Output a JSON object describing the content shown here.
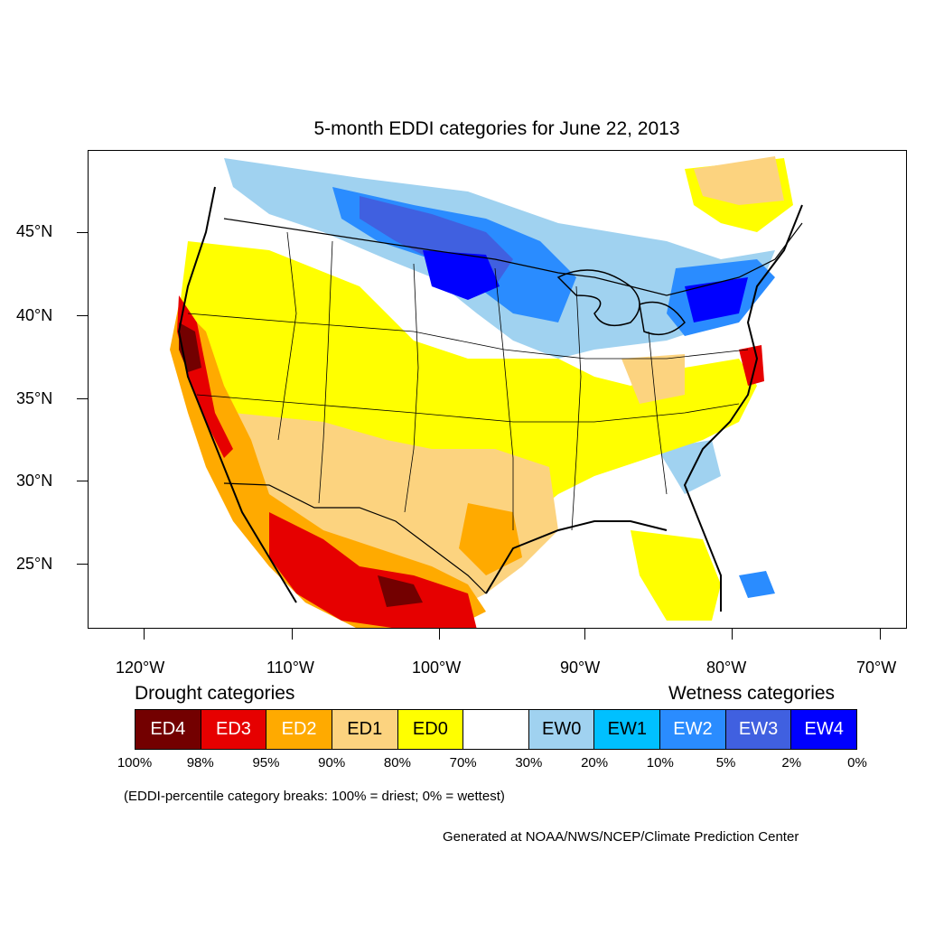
{
  "title": "5-month EDDI categories for June 22, 2013",
  "latitude_labels": [
    "45°N",
    "40°N",
    "35°N",
    "30°N",
    "25°N"
  ],
  "longitude_labels": [
    "120°W",
    "110°W",
    "100°W",
    "90°W",
    "80°W",
    "70°W"
  ],
  "legend": {
    "drought_header": "Drought categories",
    "wetness_header": "Wetness categories",
    "categories": [
      {
        "label": "ED4",
        "color": "#730000",
        "text_color": "#ffffff"
      },
      {
        "label": "ED3",
        "color": "#e60000",
        "text_color": "#ffffff"
      },
      {
        "label": "ED2",
        "color": "#ffaa00",
        "text_color": "#ffffff"
      },
      {
        "label": "ED1",
        "color": "#fcd37f",
        "text_color": "#000000"
      },
      {
        "label": "ED0",
        "color": "#ffff00",
        "text_color": "#000000"
      },
      {
        "label": "",
        "color": "#ffffff",
        "text_color": "#000000"
      },
      {
        "label": "EW0",
        "color": "#a0d2f0",
        "text_color": "#000000"
      },
      {
        "label": "EW1",
        "color": "#00c0ff",
        "text_color": "#000000"
      },
      {
        "label": "EW2",
        "color": "#2a8cff",
        "text_color": "#ffffff"
      },
      {
        "label": "EW3",
        "color": "#4060e0",
        "text_color": "#ffffff"
      },
      {
        "label": "EW4",
        "color": "#0000ff",
        "text_color": "#ffffff"
      }
    ],
    "percent_breaks": [
      "100%",
      "98%",
      "95%",
      "90%",
      "80%",
      "70%",
      "30%",
      "20%",
      "10%",
      "5%",
      "2%",
      "0%"
    ]
  },
  "note": "(EDDI-percentile category breaks: 100% = driest; 0% = wettest)",
  "credit": "Generated at NOAA/NWS/NCEP/Climate Prediction Center"
}
